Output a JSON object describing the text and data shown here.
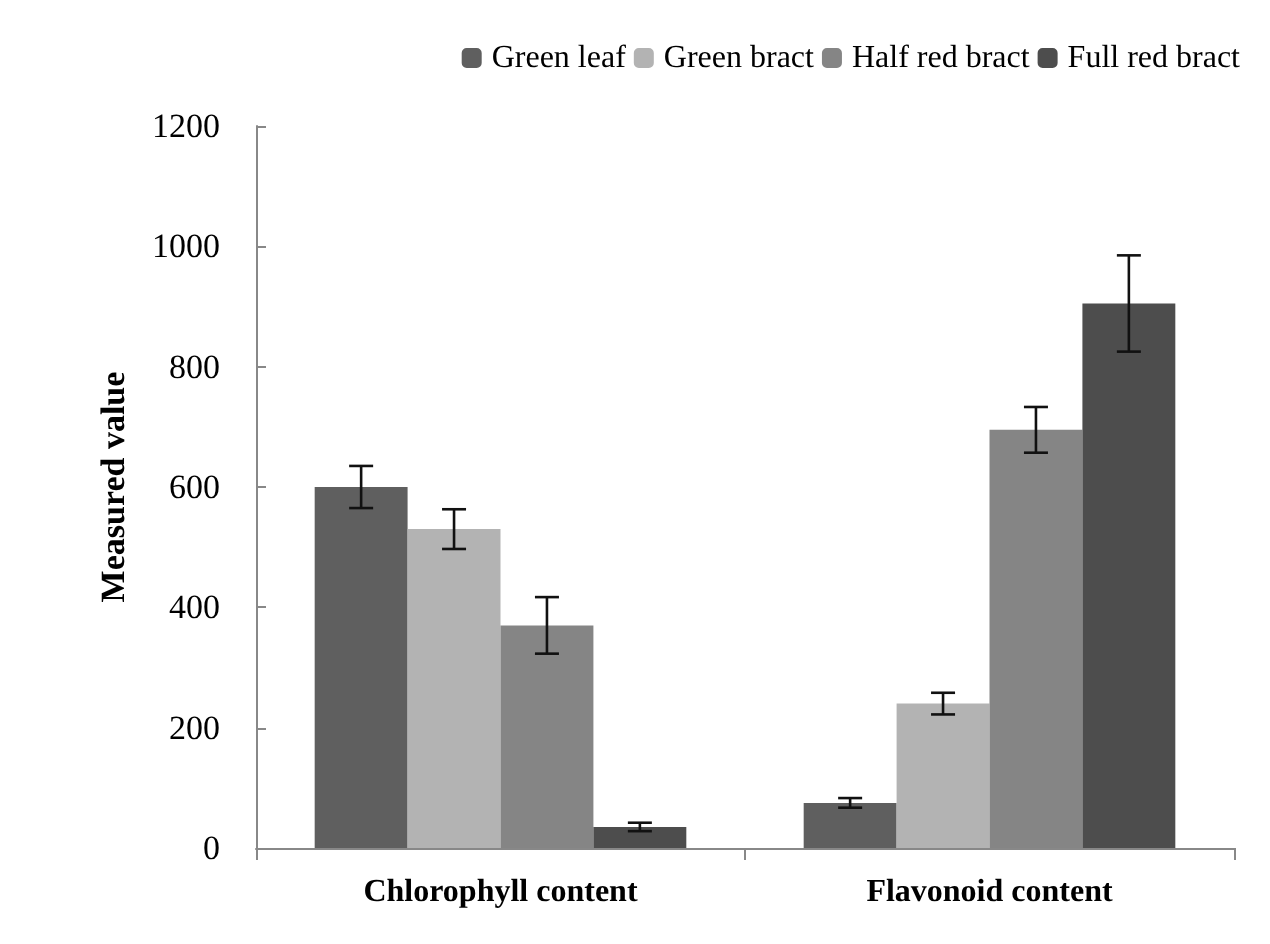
{
  "chart_data": {
    "type": "bar",
    "ylabel": "Measured value",
    "categories": [
      "Chlorophyll content",
      "Flavonoid content"
    ],
    "series": [
      {
        "name": "Green leaf",
        "color": "#5f5f5f",
        "values": [
          600,
          75
        ],
        "errors": [
          35,
          8
        ]
      },
      {
        "name": "Green bract",
        "color": "#b3b3b3",
        "values": [
          530,
          240
        ],
        "errors": [
          33,
          18
        ]
      },
      {
        "name": "Half red bract",
        "color": "#858585",
        "values": [
          370,
          695
        ],
        "errors": [
          47,
          38
        ]
      },
      {
        "name": "Full red bract",
        "color": "#4d4d4d",
        "values": [
          35,
          905
        ],
        "errors": [
          7,
          80
        ]
      }
    ],
    "ylim": [
      0,
      1200
    ],
    "yticks": [
      0,
      200,
      400,
      600,
      800,
      1000,
      1200
    ],
    "grid": false,
    "legend": "top right"
  }
}
